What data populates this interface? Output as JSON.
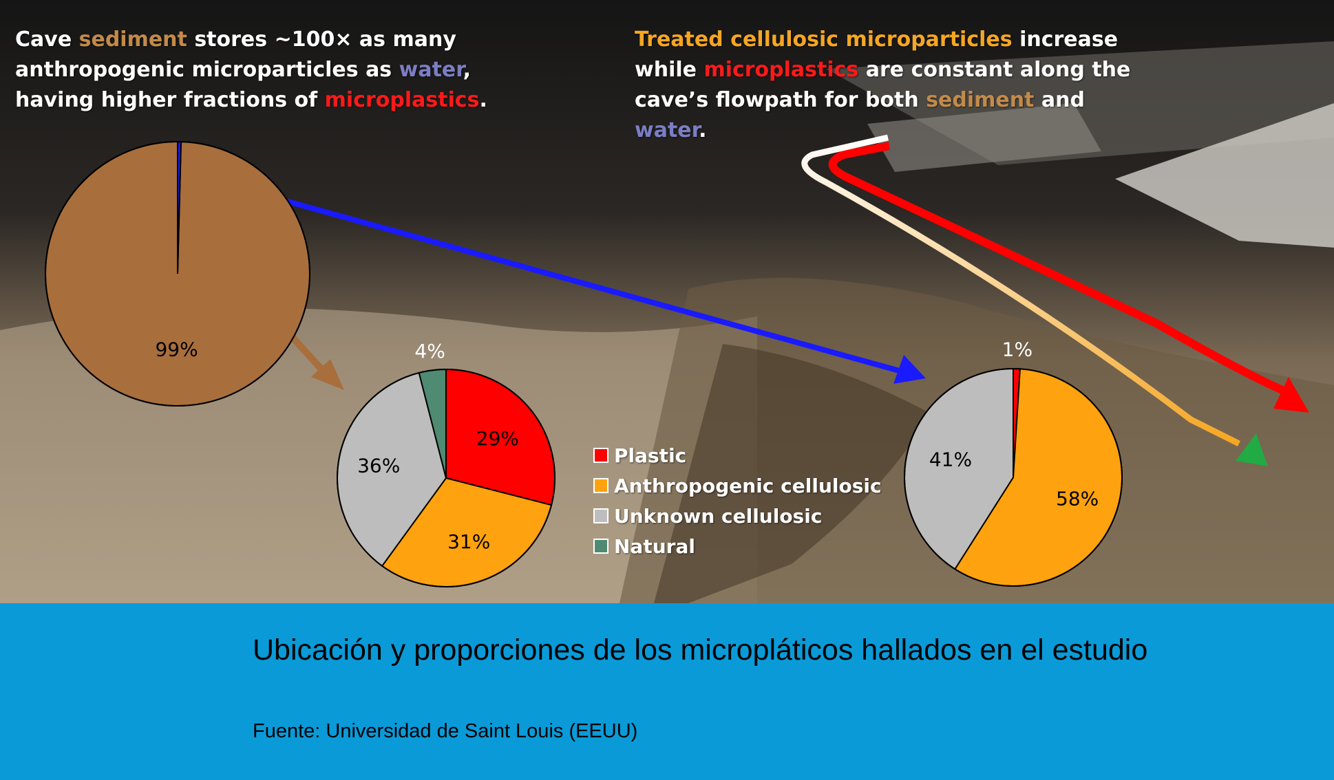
{
  "headline_left": {
    "p1": "Cave ",
    "sediment": "sediment",
    "p2": " stores ~100× as many anthropogenic microparticles as ",
    "water": "water",
    "p3": ", having higher fractions of ",
    "microplastics": "microplastics",
    "p4": "."
  },
  "headline_right": {
    "treated": "Treated cellulosic microparticles",
    "p1": " increase while ",
    "microplastics": "microplastics",
    "p2": " are constant along the cave’s flowpath for both ",
    "sediment": "sediment",
    "p3": " and ",
    "water": "water",
    "p4": "."
  },
  "legend": {
    "items": [
      {
        "label": "Plastic",
        "color": "#ff0000"
      },
      {
        "label": "Anthropogenic cellulosic",
        "color": "#ffa20f"
      },
      {
        "label": "Unknown cellulosic",
        "color": "#bdbdbd"
      },
      {
        "label": "Natural",
        "color": "#4f8a72"
      }
    ]
  },
  "chart_data": [
    {
      "type": "pie",
      "slices": [
        {
          "label": "",
          "value": 99,
          "display": "99%",
          "color": "#a86e3c"
        },
        {
          "label": "",
          "value": 1,
          "display": "",
          "color": "#1a1aff"
        }
      ]
    },
    {
      "type": "pie",
      "slices": [
        {
          "label": "Plastic",
          "value": 29,
          "display": "29%",
          "color": "#ff0000"
        },
        {
          "label": "Anthropogenic cellulosic",
          "value": 31,
          "display": "31%",
          "color": "#ffa20f"
        },
        {
          "label": "Unknown cellulosic",
          "value": 36,
          "display": "36%",
          "color": "#bdbdbd"
        },
        {
          "label": "Natural",
          "value": 4,
          "display": "4%",
          "color": "#4f8a72"
        }
      ]
    },
    {
      "type": "pie",
      "slices": [
        {
          "label": "Plastic",
          "value": 1,
          "display": "1%",
          "color": "#ff0000"
        },
        {
          "label": "Anthropogenic cellulosic",
          "value": 58,
          "display": "58%",
          "color": "#ffa20f"
        },
        {
          "label": "Unknown cellulosic",
          "value": 41,
          "display": "41%",
          "color": "#bdbdbd"
        }
      ]
    }
  ],
  "caption": {
    "title": "Ubicación y proporciones de los micropláticos hallados en el estudio",
    "source": "Fuente: Universidad de Saint Louis (EEUU)"
  }
}
